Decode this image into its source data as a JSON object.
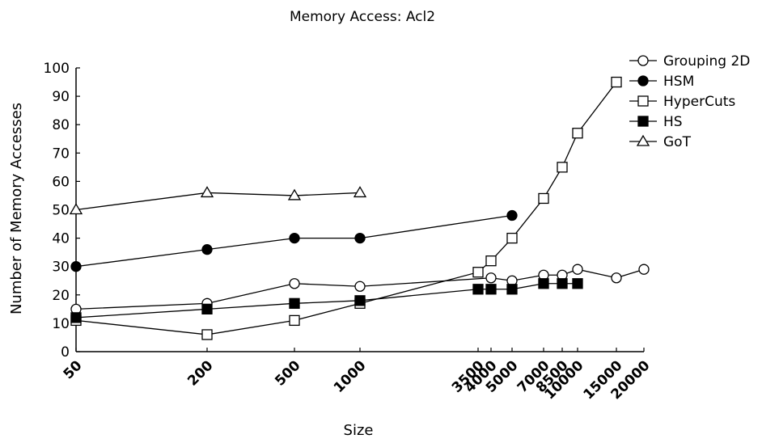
{
  "chart_data": {
    "type": "line",
    "title": "Memory Access: Acl2",
    "xlabel": "Size",
    "ylabel": "Number of Memory Accesses",
    "ylim": [
      0,
      100
    ],
    "yticks": [
      0,
      10,
      20,
      30,
      40,
      50,
      60,
      70,
      80,
      90,
      100
    ],
    "x_categories": [
      "50",
      "200",
      "500",
      "1000",
      "3500",
      "4000",
      "5000",
      "7000",
      "8500",
      "10000",
      "15000",
      "20000"
    ],
    "legend_position": "top-right",
    "grid": false,
    "series": [
      {
        "name": "Grouping 2D",
        "marker": "circle-open",
        "x": [
          "50",
          "200",
          "500",
          "1000",
          "4000",
          "5000",
          "7000",
          "8500",
          "10000",
          "15000",
          "20000"
        ],
        "values": [
          15,
          17,
          24,
          23,
          26,
          25,
          27,
          27,
          29,
          26,
          29
        ]
      },
      {
        "name": "HSM",
        "marker": "circle-filled",
        "x": [
          "50",
          "200",
          "500",
          "1000",
          "5000"
        ],
        "values": [
          30,
          36,
          40,
          40,
          48
        ]
      },
      {
        "name": "HyperCuts",
        "marker": "square-open",
        "x": [
          "50",
          "200",
          "500",
          "1000",
          "3500",
          "4000",
          "5000",
          "7000",
          "8500",
          "10000",
          "15000"
        ],
        "values": [
          11,
          6,
          11,
          17,
          28,
          32,
          40,
          54,
          65,
          77,
          95
        ]
      },
      {
        "name": "HS",
        "marker": "square-filled",
        "x": [
          "50",
          "200",
          "500",
          "1000",
          "3500",
          "4000",
          "5000",
          "7000",
          "8500",
          "10000"
        ],
        "values": [
          12,
          15,
          17,
          18,
          22,
          22,
          22,
          24,
          24,
          24
        ]
      },
      {
        "name": "GoT",
        "marker": "triangle-open",
        "x": [
          "50",
          "200",
          "500",
          "1000"
        ],
        "values": [
          50,
          56,
          55,
          56
        ]
      }
    ]
  }
}
